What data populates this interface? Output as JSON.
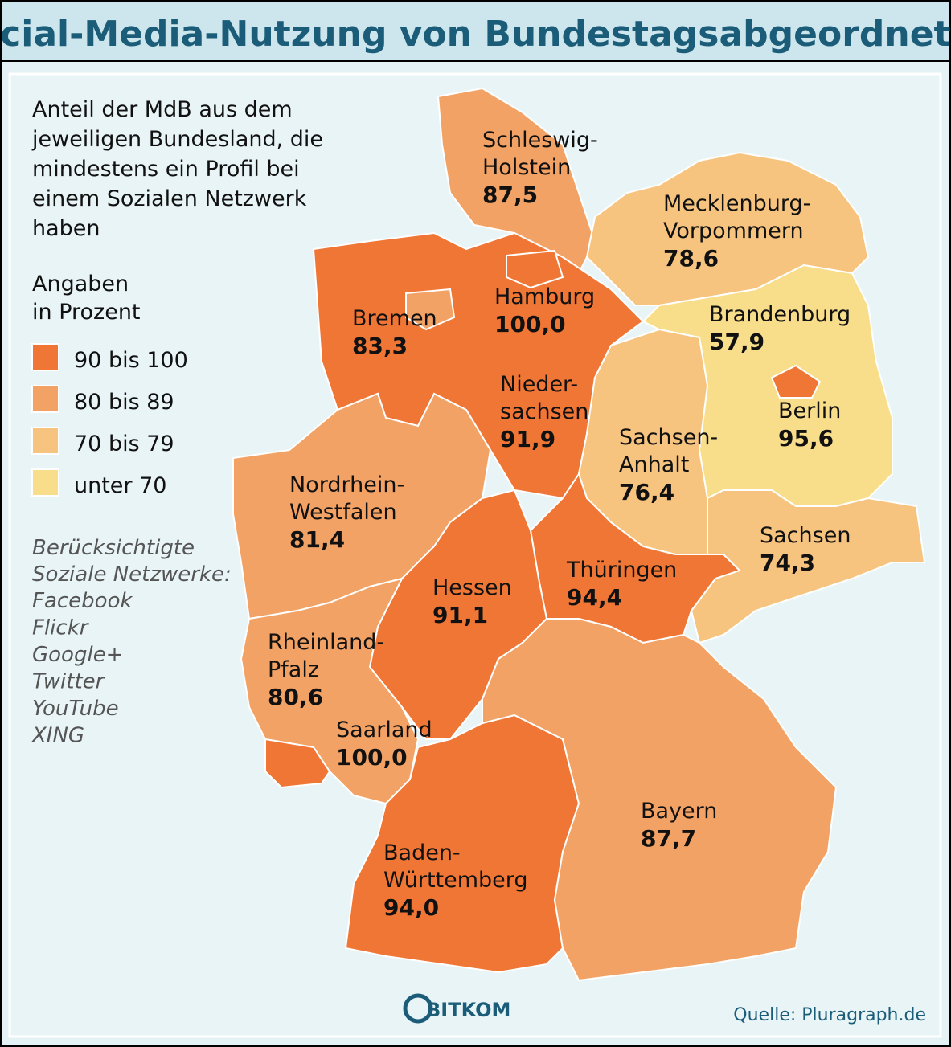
{
  "title": "Social-Media-Nutzung von Bundestagsabgeordneten",
  "description": [
    "Anteil der MdB aus dem",
    "jeweiligen Bundesland, die",
    "mindestens ein Profil bei",
    "einem Sozialen Netzwerk",
    "haben"
  ],
  "legend": {
    "title": [
      "Angaben",
      "in Prozent"
    ],
    "items": [
      {
        "label": "90 bis 100",
        "color": "#f07636"
      },
      {
        "label": "80 bis 89",
        "color": "#f3a265"
      },
      {
        "label": "70 bis 79",
        "color": "#f7c47f"
      },
      {
        "label": "unter 70",
        "color": "#f8de8a"
      }
    ]
  },
  "networks": {
    "title": [
      "Berücksichtigte",
      "Soziale Netzwerke:"
    ],
    "items": [
      "Facebook",
      "Flickr",
      "Google+",
      "Twitter",
      "YouTube",
      "XING"
    ]
  },
  "states": [
    {
      "name": [
        "Schleswig-",
        "Holstein"
      ],
      "value": "87,5",
      "color": "#f3a265"
    },
    {
      "name": [
        "Mecklenburg-",
        "Vorpommern"
      ],
      "value": "78,6",
      "color": "#f7c47f"
    },
    {
      "name": [
        "Nieder-",
        "sachsen"
      ],
      "value": "91,9",
      "color": "#f07636"
    },
    {
      "name": [
        "Brandenburg"
      ],
      "value": "57,9",
      "color": "#f8de8a"
    },
    {
      "name": [
        "Sachsen-",
        "Anhalt"
      ],
      "value": "76,4",
      "color": "#f7c47f"
    },
    {
      "name": [
        "Sachsen"
      ],
      "value": "74,3",
      "color": "#f7c47f"
    },
    {
      "name": [
        "Thüringen"
      ],
      "value": "94,4",
      "color": "#f07636"
    },
    {
      "name": [
        "Nordrhein-",
        "Westfalen"
      ],
      "value": "81,4",
      "color": "#f3a265"
    },
    {
      "name": [
        "Hessen"
      ],
      "value": "91,1",
      "color": "#f07636"
    },
    {
      "name": [
        "Rheinland-",
        "Pfalz"
      ],
      "value": "80,6",
      "color": "#f3a265"
    },
    {
      "name": [
        "Baden-",
        "Württemberg"
      ],
      "value": "94,0",
      "color": "#f07636"
    },
    {
      "name": [
        "Bayern"
      ],
      "value": "87,7",
      "color": "#f3a265"
    },
    {
      "name": [
        "Bremen"
      ],
      "value": "83,3",
      "color": "#f3a265"
    },
    {
      "name": [
        "Hamburg"
      ],
      "value": "100,0",
      "color": "#f07636"
    },
    {
      "name": [
        "Berlin"
      ],
      "value": "95,6",
      "color": "#f07636"
    },
    {
      "name": [
        "Saarland"
      ],
      "value": "100,0",
      "color": "#f07636"
    }
  ],
  "logo": "BITKOM",
  "source": "Quelle: Pluragraph.de"
}
